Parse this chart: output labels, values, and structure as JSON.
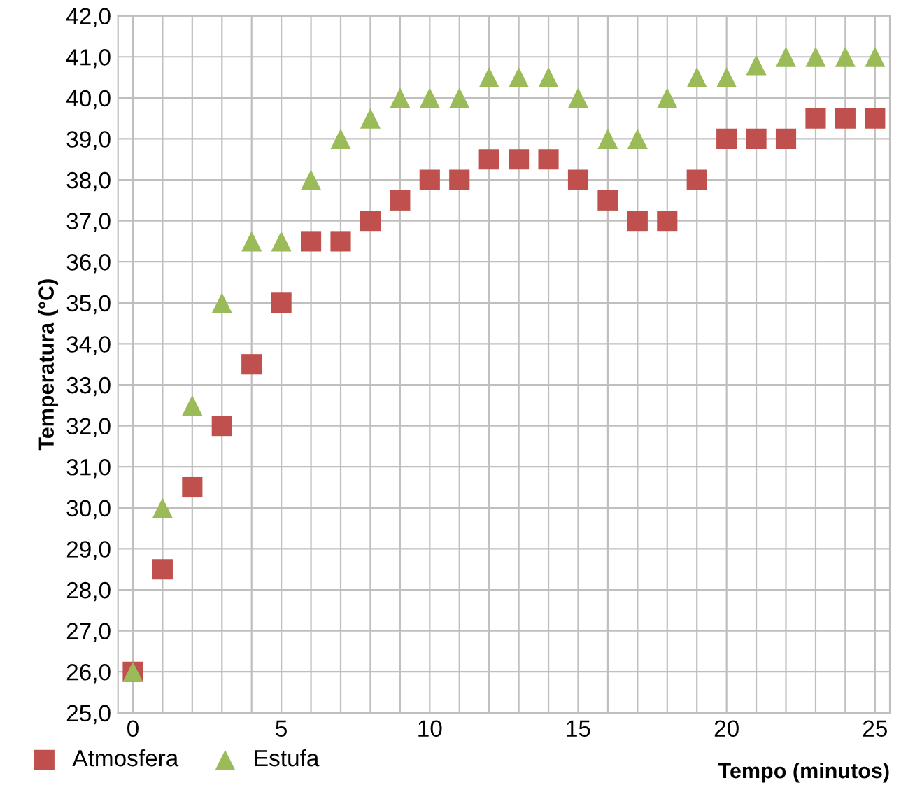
{
  "chart_data": {
    "type": "scatter",
    "xlabel": "Tempo (minutos)",
    "ylabel": "Temperatura (°C)",
    "x": [
      0,
      1,
      2,
      3,
      4,
      5,
      6,
      7,
      8,
      9,
      10,
      11,
      12,
      13,
      14,
      15,
      16,
      17,
      18,
      19,
      20,
      21,
      22,
      23,
      24,
      25
    ],
    "series": [
      {
        "name": "Atmosfera",
        "color": "#c0504d",
        "marker": "square",
        "values": [
          26,
          28.5,
          30.5,
          32,
          33.5,
          35,
          36.5,
          36.5,
          37,
          37.5,
          38,
          38,
          38.5,
          38.5,
          38.5,
          38,
          37.5,
          37,
          37,
          38,
          39,
          39,
          39,
          39.5,
          39.5,
          39.5
        ]
      },
      {
        "name": "Estufa",
        "color": "#9bbb59",
        "marker": "triangle",
        "values": [
          26,
          30,
          32.5,
          35,
          36.5,
          36.5,
          38,
          39,
          39.5,
          40,
          40,
          40,
          40.5,
          40.5,
          40.5,
          40,
          39,
          39,
          40,
          40.5,
          40.5,
          40.8,
          41,
          41,
          41,
          41
        ]
      }
    ],
    "xlim": [
      -0.5,
      25.5
    ],
    "xticks": [
      0,
      {
        "value": 1,
        "label": null
      },
      {
        "value": 2,
        "label": null
      },
      {
        "value": 3,
        "label": null
      },
      {
        "value": 4,
        "label": null
      },
      5,
      {
        "value": 6,
        "label": null
      },
      {
        "value": 7,
        "label": null
      },
      {
        "value": 8,
        "label": null
      },
      {
        "value": 9,
        "label": null
      },
      10,
      {
        "value": 11,
        "label": null
      },
      {
        "value": 12,
        "label": null
      },
      {
        "value": 13,
        "label": null
      },
      {
        "value": 14,
        "label": null
      },
      15,
      {
        "value": 16,
        "label": null
      },
      {
        "value": 17,
        "label": null
      },
      {
        "value": 18,
        "label": null
      },
      {
        "value": 19,
        "label": null
      },
      20,
      {
        "value": 21,
        "label": null
      },
      {
        "value": 22,
        "label": null
      },
      {
        "value": 23,
        "label": null
      },
      {
        "value": 24,
        "label": null
      },
      25
    ],
    "ylim": [
      25,
      42
    ],
    "yticks": [
      {
        "value": 25,
        "label": "25,0"
      },
      {
        "value": 26,
        "label": "26,0"
      },
      {
        "value": 27,
        "label": "27,0"
      },
      {
        "value": 28,
        "label": "28,0"
      },
      {
        "value": 29,
        "label": "29,0"
      },
      {
        "value": 30,
        "label": "30,0"
      },
      {
        "value": 31,
        "label": "31,0"
      },
      {
        "value": 32,
        "label": "32,0"
      },
      {
        "value": 33,
        "label": "33,0"
      },
      {
        "value": 34,
        "label": "34,0"
      },
      {
        "value": 35,
        "label": "35,0"
      },
      {
        "value": 36,
        "label": "36,0"
      },
      {
        "value": 37,
        "label": "37,0"
      },
      {
        "value": 38,
        "label": "38,0"
      },
      {
        "value": 39,
        "label": "39,0"
      },
      {
        "value": 40,
        "label": "40,0"
      },
      {
        "value": 41,
        "label": "41,0"
      },
      {
        "value": 42,
        "label": "42,0"
      }
    ],
    "grid": true,
    "legend": "bottom left"
  }
}
